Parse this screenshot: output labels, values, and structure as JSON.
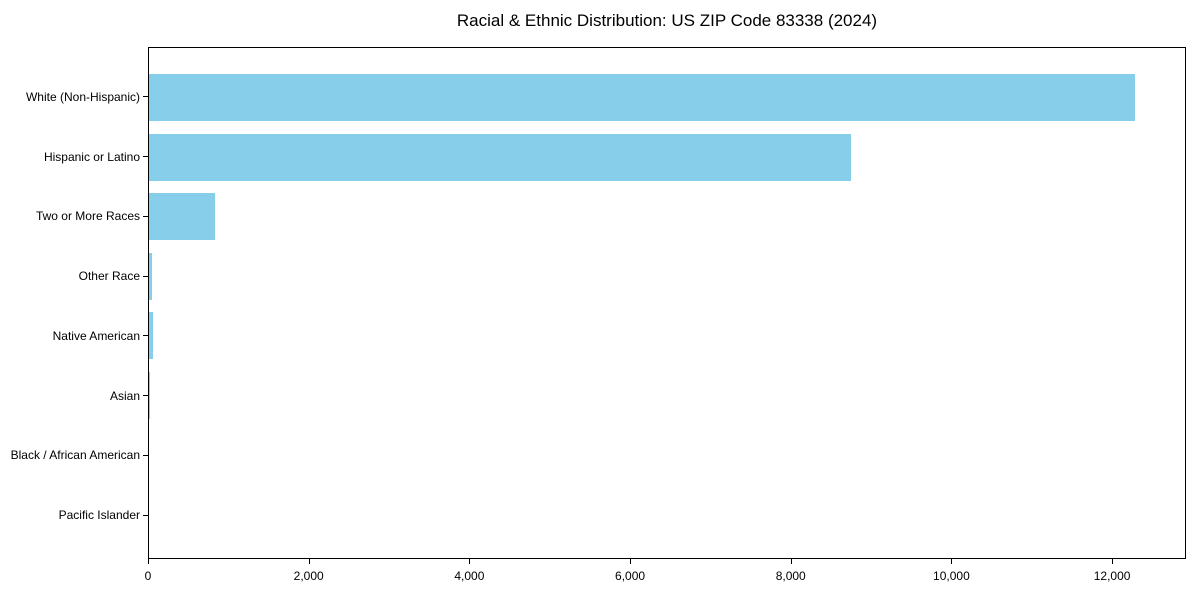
{
  "chart_data": {
    "type": "bar",
    "orientation": "horizontal",
    "title": "Racial & Ethnic Distribution: US ZIP Code 83338 (2024)",
    "categories": [
      "White (Non-Hispanic)",
      "Hispanic or Latino",
      "Two or More Races",
      "Other Race",
      "Native American",
      "Asian",
      "Black / African American",
      "Pacific Islander"
    ],
    "values": [
      12300,
      8760,
      820,
      35,
      50,
      12,
      0,
      0
    ],
    "xlabel": "",
    "ylabel": "",
    "xlim": [
      0,
      12920
    ],
    "xticks": [
      0,
      2000,
      4000,
      6000,
      8000,
      10000,
      12000
    ],
    "xtick_labels": [
      "0",
      "2,000",
      "4,000",
      "6,000",
      "8,000",
      "10,000",
      "12,000"
    ],
    "bar_color": "#87CEEB",
    "axis_color": "#000000",
    "background_color": "#FFFFFF",
    "grid": false,
    "legend": false
  }
}
